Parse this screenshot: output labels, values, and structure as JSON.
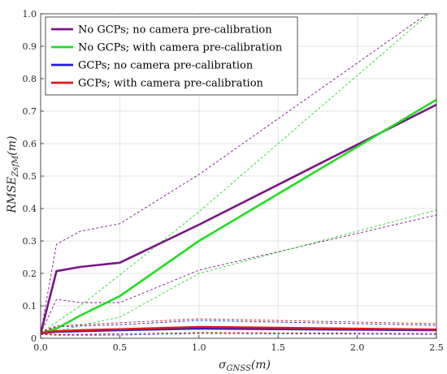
{
  "chart_data": {
    "type": "line",
    "title": "",
    "xlabel": "σGNSS(m)",
    "ylabel": "RMSEZsfM(m)",
    "xlabel_parts": {
      "symbol": "σ",
      "sub": "GNSS",
      "unit": "(m)"
    },
    "ylabel_parts": {
      "symbol": "RMSE",
      "sub": "ZsfM",
      "unit": "(m)"
    },
    "xlim": [
      0,
      2.5
    ],
    "ylim": [
      0,
      1.0
    ],
    "xticks": [
      0.0,
      0.5,
      1.0,
      1.5,
      2.0,
      2.5
    ],
    "xtick_labels": [
      "0.0",
      "0.5",
      "1.0",
      "1.5",
      "2.0",
      "2.5"
    ],
    "yticks": [
      0,
      0.1,
      0.2,
      0.3,
      0.4,
      0.5,
      0.6,
      0.7,
      0.8,
      0.9,
      1.0
    ],
    "ytick_labels": [
      "0",
      "0.1",
      "0.2",
      "0.3",
      "0.4",
      "0.5",
      "0.6",
      "0.7",
      "0.8",
      "0.9",
      "1.0"
    ],
    "grid": true,
    "legend_position": "top-left",
    "series": [
      {
        "name": "No GCPs; no camera pre-calibration",
        "color": "#7B1487",
        "x": [
          0.0,
          0.1,
          0.25,
          0.5,
          1.0,
          2.5
        ],
        "y": [
          0.015,
          0.207,
          0.22,
          0.233,
          0.35,
          0.72
        ],
        "upper": [
          0.015,
          0.29,
          0.33,
          0.353,
          0.505,
          1.02
        ],
        "lower": [
          0.015,
          0.12,
          0.11,
          0.11,
          0.21,
          0.38
        ]
      },
      {
        "name": "No GCPs; with camera pre-calibration",
        "color": "#22DD22",
        "x": [
          0.0,
          0.1,
          0.25,
          0.5,
          1.0,
          2.5
        ],
        "y": [
          0.015,
          0.03,
          0.07,
          0.13,
          0.3,
          0.735
        ],
        "upper": [
          0.015,
          0.05,
          0.1,
          0.195,
          0.39,
          1.02
        ],
        "lower": [
          0.015,
          0.02,
          0.04,
          0.065,
          0.2,
          0.395
        ]
      },
      {
        "name": "GCPs; no camera pre-calibration",
        "color": "#1E1EDC",
        "x": [
          0.0,
          0.1,
          0.25,
          0.5,
          1.0,
          2.5
        ],
        "y": [
          0.015,
          0.02,
          0.022,
          0.025,
          0.03,
          0.025
        ],
        "upper": [
          0.018,
          0.035,
          0.038,
          0.042,
          0.055,
          0.04
        ],
        "lower": [
          0.012,
          0.01,
          0.01,
          0.01,
          0.015,
          0.012
        ]
      },
      {
        "name": "GCPs; with camera pre-calibration",
        "color": "#E01818",
        "x": [
          0.0,
          0.1,
          0.25,
          0.5,
          1.0,
          2.5
        ],
        "y": [
          0.016,
          0.022,
          0.025,
          0.028,
          0.035,
          0.027
        ],
        "upper": [
          0.02,
          0.038,
          0.042,
          0.048,
          0.06,
          0.045
        ],
        "lower": [
          0.012,
          0.012,
          0.012,
          0.014,
          0.018,
          0.015
        ]
      }
    ]
  }
}
